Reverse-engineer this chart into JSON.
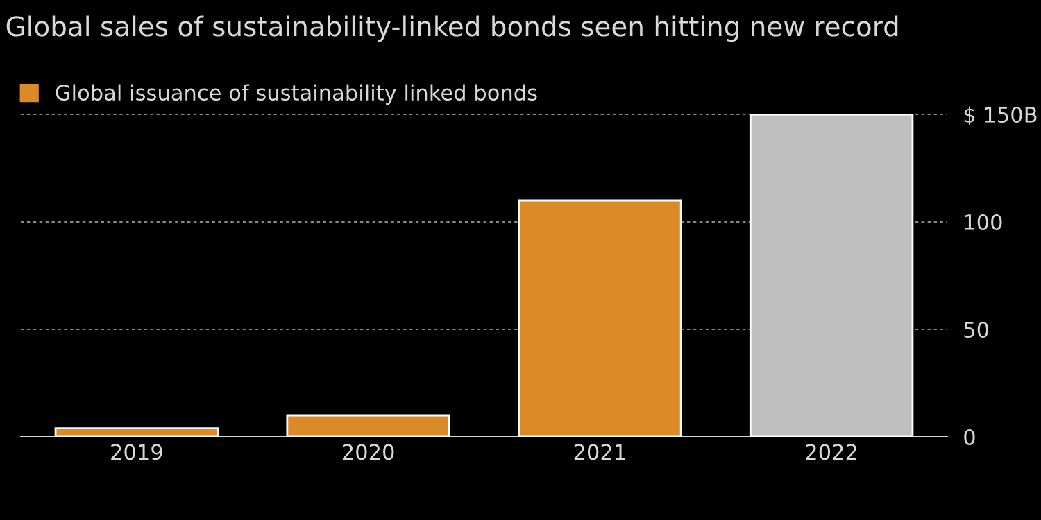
{
  "chart_data": {
    "type": "bar",
    "title": "Global sales of sustainability-linked bonds seen hitting new record",
    "categories": [
      "2019",
      "2020",
      "2021",
      "2022"
    ],
    "series": [
      {
        "name": "Global issuance of sustainability linked bonds",
        "color": "#dc8a28",
        "colors": [
          "#dc8a28",
          "#dc8a28",
          "#dc8a28",
          "#bfbfbf"
        ],
        "values": [
          4,
          10,
          110,
          150
        ]
      }
    ],
    "ylim": [
      0,
      150
    ],
    "yticks": [
      0,
      50,
      100,
      {
        "value": 150,
        "label": "$ 150B"
      }
    ],
    "grid": "y",
    "legend": "top left"
  }
}
